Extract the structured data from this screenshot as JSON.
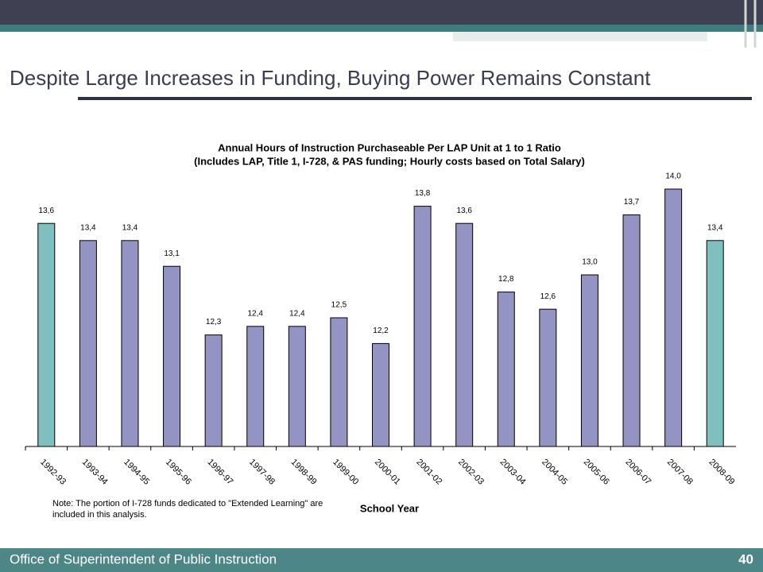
{
  "slide_title": "Despite Large Increases in Funding, Buying Power Remains Constant",
  "footer": {
    "organization": "Office of Superintendent of Public Instruction",
    "page": "40"
  },
  "chart_data": {
    "type": "bar",
    "title": "Annual Hours of Instruction Purchaseable Per LAP Unit at 1 to 1 Ratio",
    "subtitle": "(Includes LAP, Title 1, I-728, & PAS funding; Hourly costs based on Total Salary)",
    "x_label": "School Year",
    "note": "Note: The  portion of I-728 funds dedicated to \"Extended Learning\" are included in this analysis.",
    "categories": [
      "1992-93",
      "1993-94",
      "1994-95",
      "1995-96",
      "1996-97",
      "1997-98",
      "1998-99",
      "1999-00",
      "2000-01",
      "2001-02",
      "2002-03",
      "2003-04",
      "2004-05",
      "2005-06",
      "2006-07",
      "2007-08",
      "2008-09"
    ],
    "values": [
      13.6,
      13.4,
      13.4,
      13.1,
      12.3,
      12.4,
      12.4,
      12.5,
      12.2,
      13.8,
      13.6,
      12.8,
      12.6,
      13.0,
      13.7,
      14.0,
      13.4
    ],
    "value_labels": [
      "13,6",
      "13,4",
      "13,4",
      "13,1",
      "12,3",
      "12,4",
      "12,4",
      "12,5",
      "12,2",
      "13,8",
      "13,6",
      "12,8",
      "12,6",
      "13,0",
      "13,7",
      "14,0",
      "13,4"
    ],
    "colors": [
      "#80bfbf",
      "#9393c4",
      "#9393c4",
      "#9393c4",
      "#9393c4",
      "#9393c4",
      "#9393c4",
      "#9393c4",
      "#9393c4",
      "#9393c4",
      "#9393c4",
      "#9393c4",
      "#9393c4",
      "#9393c4",
      "#9393c4",
      "#9393c4",
      "#80bfbf"
    ],
    "ylim": [
      11,
      14.5
    ]
  }
}
